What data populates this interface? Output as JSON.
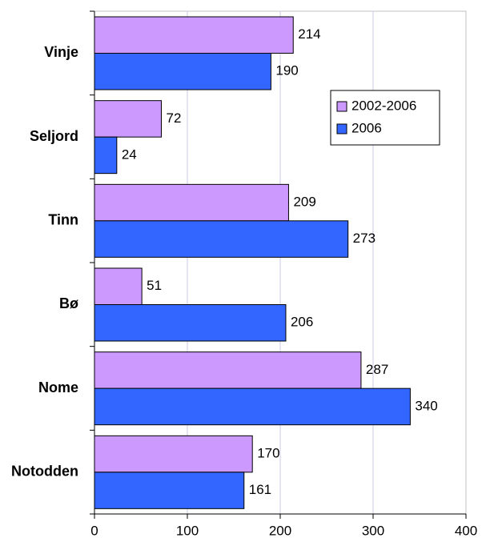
{
  "chart_data": {
    "type": "hbar",
    "categories": [
      "Vinje",
      "Seljord",
      "Tinn",
      "Bø",
      "Nome",
      "Notodden"
    ],
    "series": [
      {
        "name": "2002-2006",
        "color": "#cc99ff",
        "values": [
          214,
          72,
          209,
          51,
          287,
          170
        ]
      },
      {
        "name": "2006",
        "color": "#3366ff",
        "values": [
          190,
          24,
          273,
          206,
          340,
          161
        ]
      }
    ],
    "xlim": [
      0,
      400
    ],
    "xticks": [
      0,
      100,
      200,
      300,
      400
    ],
    "grid": true,
    "legend": "upper right"
  }
}
